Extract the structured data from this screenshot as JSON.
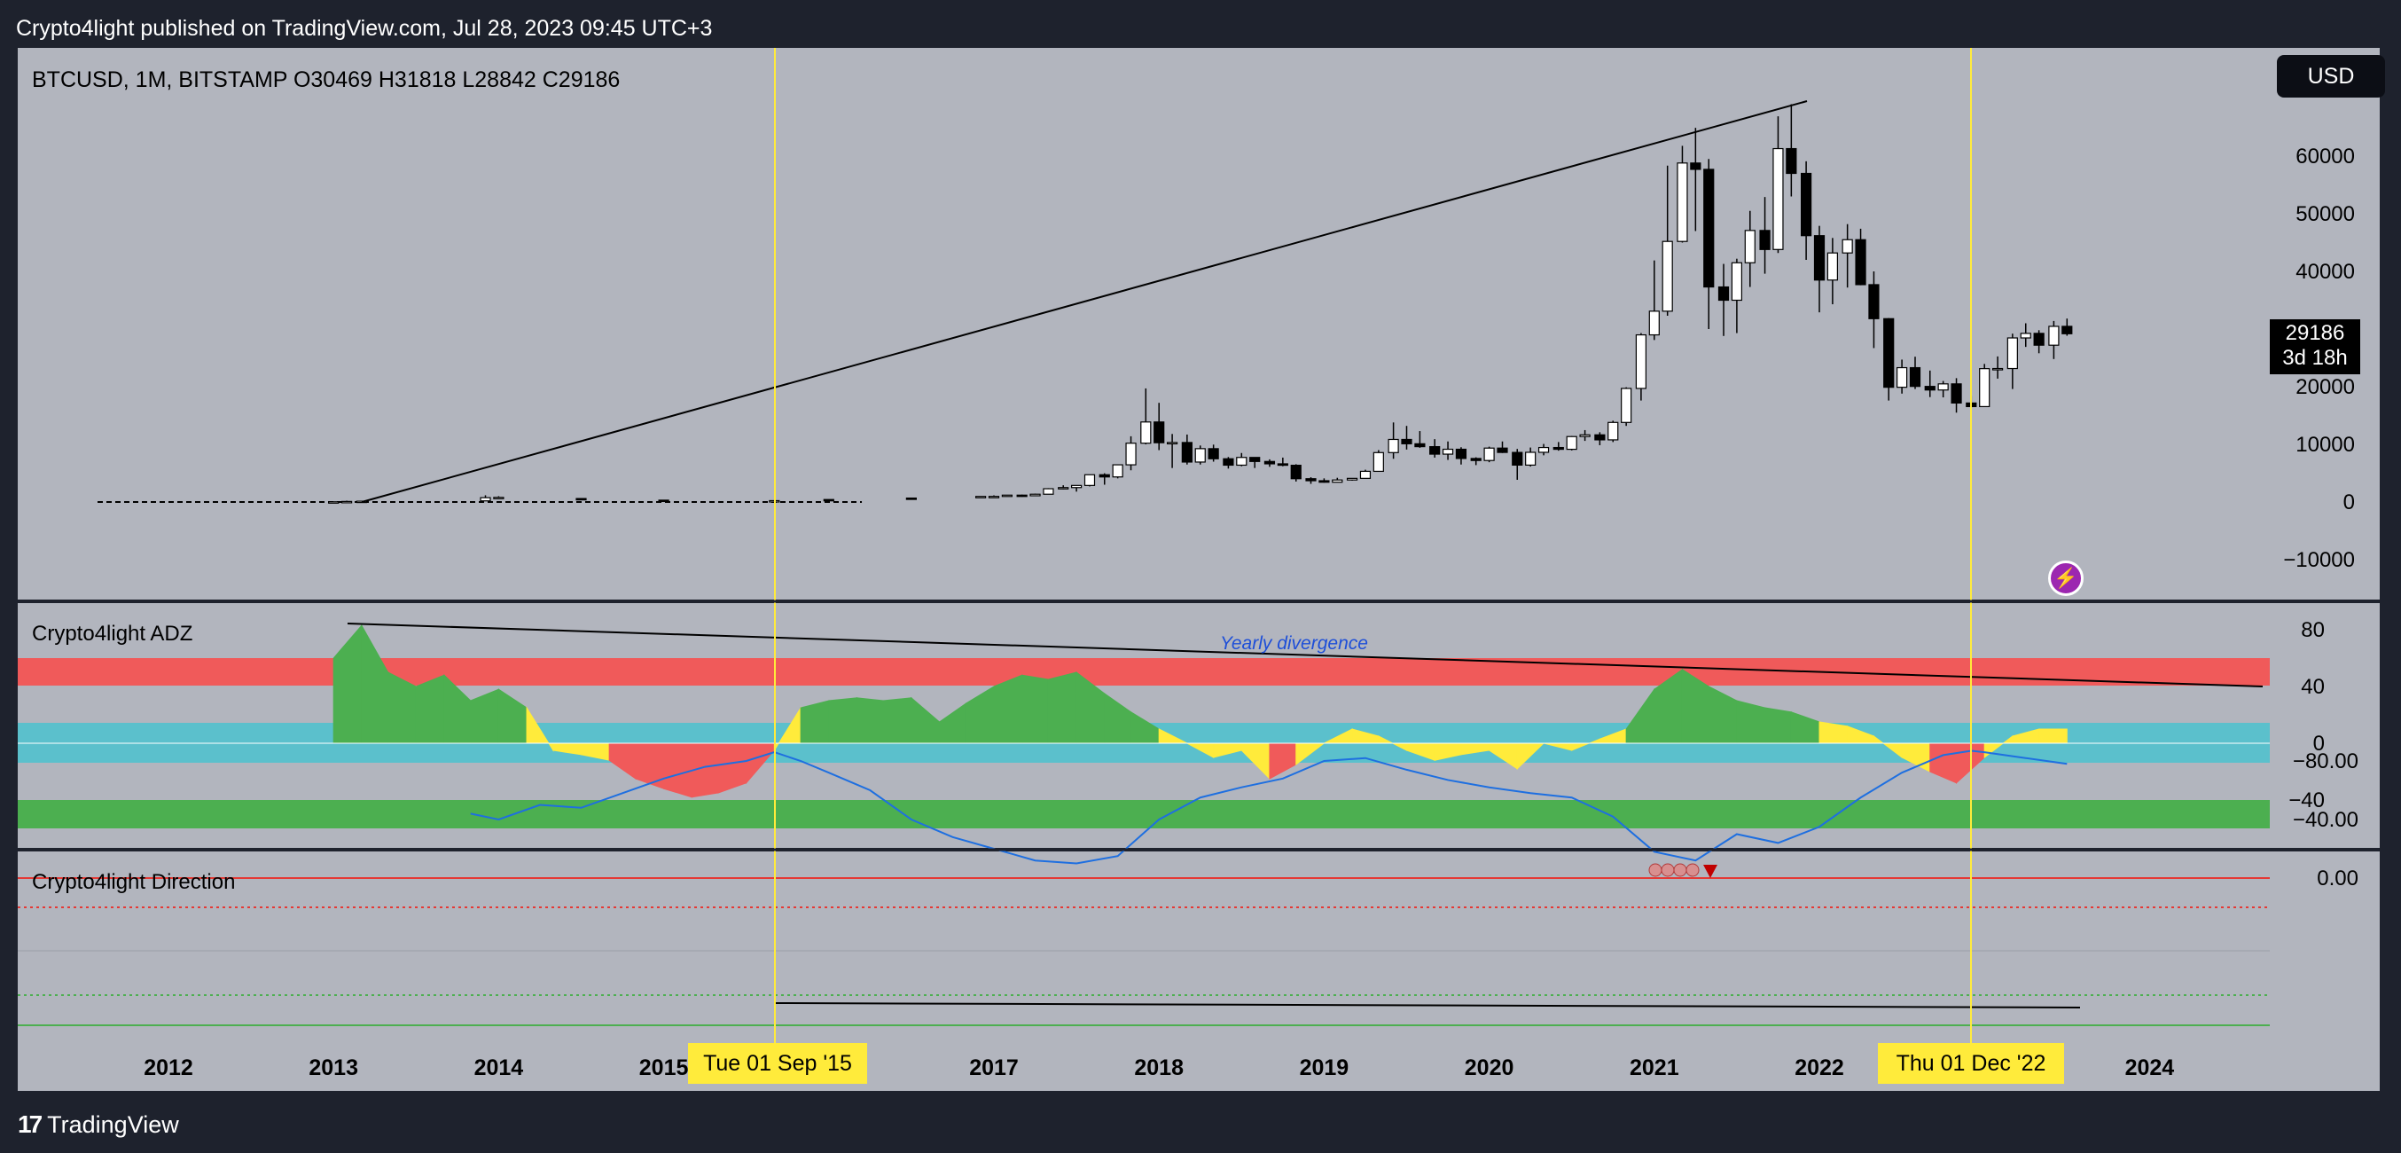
{
  "header": {
    "published": "Crypto4light published on TradingView.com, Jul 28, 2023 09:45 UTC+3"
  },
  "symbol_line": "BTCUSD, 1M, BITSTAMP  O30469  H31818  L28842  C29186",
  "currency_button": "USD",
  "last_price": {
    "value": "29186",
    "countdown": "3d 18h"
  },
  "footer": {
    "brand": "TradingView",
    "logo_mark": "17"
  },
  "colors": {
    "pane_bg": "#b2b5be",
    "yellow": "#ffeb3b",
    "green": "#4caf50",
    "red": "#f05a5a",
    "teal": "#5bc0cc",
    "blue": "#1e6fe0"
  },
  "chart_data": [
    {
      "type": "candlestick",
      "title": "BTCUSD, 1M, BITSTAMP",
      "ylim": [
        -17000,
        70000
      ],
      "yticks": [
        "60000",
        "50000",
        "40000",
        "30000",
        "20000",
        "10000",
        "0",
        "−10000"
      ],
      "candles": [
        [
          2013.0,
          13,
          33,
          13,
          33
        ],
        [
          2013.08,
          33,
          230,
          33,
          94
        ],
        [
          2013.17,
          94,
          150,
          70,
          140
        ],
        [
          2013.92,
          200,
          1163,
          200,
          750
        ],
        [
          2014.0,
          750,
          1000,
          700,
          800
        ],
        [
          2014.5,
          600,
          650,
          550,
          580
        ],
        [
          2015.0,
          320,
          330,
          180,
          220
        ],
        [
          2015.67,
          230,
          240,
          220,
          235
        ],
        [
          2016.0,
          430,
          450,
          350,
          370
        ],
        [
          2016.5,
          680,
          700,
          620,
          650
        ],
        [
          2016.92,
          750,
          980,
          740,
          965
        ],
        [
          2017.0,
          965,
          1150,
          900,
          970
        ],
        [
          2017.08,
          970,
          1200,
          920,
          1190
        ],
        [
          2017.17,
          1190,
          1280,
          900,
          1080
        ],
        [
          2017.25,
          1080,
          1450,
          1060,
          1350
        ],
        [
          2017.33,
          1350,
          2400,
          1340,
          2300
        ],
        [
          2017.42,
          2300,
          2900,
          2200,
          2500
        ],
        [
          2017.5,
          2500,
          2900,
          1800,
          2870
        ],
        [
          2017.58,
          2870,
          4700,
          2700,
          4730
        ],
        [
          2017.67,
          4730,
          4980,
          3000,
          4350
        ],
        [
          2017.75,
          4350,
          6500,
          4100,
          6450
        ],
        [
          2017.83,
          6450,
          11400,
          5500,
          10200
        ],
        [
          2017.92,
          10200,
          19700,
          10000,
          13880
        ],
        [
          2018.0,
          13880,
          17200,
          9000,
          10280
        ],
        [
          2018.08,
          10280,
          11800,
          5900,
          10320
        ],
        [
          2018.17,
          10320,
          11700,
          6500,
          6930
        ],
        [
          2018.25,
          6930,
          9800,
          6500,
          9250
        ],
        [
          2018.33,
          9250,
          9950,
          7000,
          7500
        ],
        [
          2018.42,
          7500,
          7800,
          5800,
          6390
        ],
        [
          2018.5,
          6390,
          8500,
          6200,
          7730
        ],
        [
          2018.58,
          7730,
          7750,
          5900,
          7030
        ],
        [
          2018.67,
          7030,
          7400,
          6100,
          6620
        ],
        [
          2018.75,
          6620,
          7700,
          6200,
          6370
        ],
        [
          2018.83,
          6370,
          6550,
          3550,
          4040
        ],
        [
          2018.92,
          4040,
          4300,
          3150,
          3690
        ],
        [
          2019.0,
          3690,
          4100,
          3350,
          3430
        ],
        [
          2019.08,
          3430,
          4200,
          3400,
          3820
        ],
        [
          2019.17,
          3820,
          4100,
          3700,
          4100
        ],
        [
          2019.25,
          4100,
          5600,
          4100,
          5320
        ],
        [
          2019.33,
          5320,
          9000,
          5300,
          8570
        ],
        [
          2019.42,
          8570,
          13800,
          7500,
          10850
        ],
        [
          2019.5,
          10850,
          13200,
          9100,
          10100
        ],
        [
          2019.58,
          10100,
          12300,
          9400,
          9600
        ],
        [
          2019.67,
          9600,
          10900,
          7700,
          8300
        ],
        [
          2019.75,
          8300,
          10500,
          7300,
          9150
        ],
        [
          2019.83,
          9150,
          9500,
          6500,
          7550
        ],
        [
          2019.92,
          7550,
          7750,
          6400,
          7200
        ],
        [
          2020.0,
          7200,
          9600,
          6900,
          9350
        ],
        [
          2020.08,
          9350,
          10500,
          8500,
          8600
        ],
        [
          2020.17,
          8600,
          9200,
          3850,
          6400
        ],
        [
          2020.25,
          6400,
          9450,
          6150,
          8620
        ],
        [
          2020.33,
          8620,
          10070,
          8100,
          9450
        ],
        [
          2020.42,
          9450,
          10400,
          8900,
          9140
        ],
        [
          2020.5,
          9140,
          11450,
          8950,
          11350
        ],
        [
          2020.58,
          11350,
          12470,
          10600,
          11650
        ],
        [
          2020.67,
          11650,
          12100,
          9850,
          10780
        ],
        [
          2020.75,
          10780,
          14100,
          10400,
          13800
        ],
        [
          2020.83,
          13800,
          19900,
          13200,
          19700
        ],
        [
          2020.92,
          19700,
          29300,
          17600,
          28990
        ],
        [
          2021.0,
          28990,
          41900,
          28100,
          33100
        ],
        [
          2021.08,
          33100,
          58350,
          32300,
          45200
        ],
        [
          2021.17,
          45200,
          61780,
          45000,
          58800
        ],
        [
          2021.25,
          58800,
          64900,
          47000,
          57700
        ],
        [
          2021.33,
          57700,
          59500,
          30000,
          37300
        ],
        [
          2021.42,
          37300,
          41300,
          28800,
          35000
        ],
        [
          2021.5,
          35000,
          42200,
          29300,
          41500
        ],
        [
          2021.58,
          41500,
          50500,
          37300,
          47100
        ],
        [
          2021.67,
          47100,
          52900,
          39600,
          43800
        ],
        [
          2021.75,
          43800,
          66900,
          43200,
          61300
        ],
        [
          2021.83,
          61300,
          69000,
          53000,
          57000
        ],
        [
          2021.92,
          57000,
          59100,
          42000,
          46200
        ],
        [
          2022.0,
          46200,
          47900,
          32900,
          38500
        ],
        [
          2022.08,
          38500,
          45800,
          34300,
          43200
        ],
        [
          2022.17,
          43200,
          48200,
          37200,
          45500
        ],
        [
          2022.25,
          45500,
          47400,
          37600,
          37700
        ],
        [
          2022.33,
          37700,
          40000,
          26700,
          31800
        ],
        [
          2022.42,
          31800,
          31900,
          17600,
          19900
        ],
        [
          2022.5,
          19900,
          24700,
          18800,
          23300
        ],
        [
          2022.58,
          23300,
          25200,
          19600,
          20050
        ],
        [
          2022.67,
          20050,
          22800,
          18200,
          19430
        ],
        [
          2022.75,
          19430,
          20990,
          18150,
          20490
        ],
        [
          2022.83,
          20490,
          21480,
          15500,
          17170
        ],
        [
          2022.92,
          17170,
          18400,
          16300,
          16550
        ],
        [
          2023.0,
          16550,
          23950,
          16500,
          23130
        ],
        [
          2023.08,
          23130,
          25250,
          21400,
          23150
        ],
        [
          2023.17,
          23150,
          29200,
          19600,
          28460
        ],
        [
          2023.25,
          28460,
          31000,
          26900,
          29250
        ],
        [
          2023.33,
          29250,
          29800,
          25800,
          27200
        ],
        [
          2023.42,
          27200,
          31400,
          24800,
          30470
        ],
        [
          2023.5,
          30469,
          31818,
          28842,
          29186
        ]
      ]
    },
    {
      "type": "area",
      "title": "Crypto4light ADZ",
      "ylim": [
        -62,
        85
      ],
      "yticks": [
        "80",
        "40",
        "0",
        "−40"
      ],
      "annotation": "Yearly divergence",
      "x": [
        2013.0,
        2013.17,
        2013.33,
        2013.5,
        2013.67,
        2013.83,
        2014.0,
        2014.17,
        2014.33,
        2014.5,
        2014.67,
        2014.83,
        2015.0,
        2015.17,
        2015.33,
        2015.5,
        2015.67,
        2015.83,
        2016.0,
        2016.17,
        2016.33,
        2016.5,
        2016.67,
        2016.83,
        2017.0,
        2017.17,
        2017.33,
        2017.5,
        2017.67,
        2017.83,
        2018.0,
        2018.17,
        2018.33,
        2018.5,
        2018.67,
        2018.83,
        2019.0,
        2019.17,
        2019.33,
        2019.5,
        2019.67,
        2019.83,
        2020.0,
        2020.17,
        2020.33,
        2020.5,
        2020.67,
        2020.83,
        2021.0,
        2021.17,
        2021.33,
        2021.5,
        2021.67,
        2021.83,
        2022.0,
        2022.17,
        2022.33,
        2022.5,
        2022.67,
        2022.83,
        2023.0,
        2023.17,
        2023.33,
        2023.5
      ],
      "values": [
        60,
        83,
        50,
        40,
        48,
        30,
        38,
        25,
        -5,
        -8,
        -12,
        -25,
        -32,
        -38,
        -35,
        -28,
        -5,
        25,
        30,
        32,
        30,
        32,
        15,
        28,
        40,
        48,
        45,
        50,
        35,
        22,
        10,
        0,
        -10,
        -5,
        -25,
        -15,
        0,
        10,
        5,
        -5,
        -12,
        -8,
        -5,
        -18,
        0,
        -5,
        3,
        10,
        38,
        52,
        40,
        30,
        25,
        22,
        15,
        12,
        5,
        -10,
        -20,
        -28,
        -10,
        5,
        10,
        10
      ]
    },
    {
      "type": "line",
      "title": "Crypto4light Direction",
      "ylim": [
        -100,
        8
      ],
      "yticks": [
        "0.00",
        "−40.00",
        "−80.00"
      ],
      "x": [
        2013.83,
        2014.0,
        2014.25,
        2014.5,
        2014.75,
        2015.0,
        2015.25,
        2015.5,
        2015.67,
        2015.83,
        2016.0,
        2016.25,
        2016.5,
        2016.75,
        2017.0,
        2017.25,
        2017.5,
        2017.75,
        2018.0,
        2018.25,
        2018.5,
        2018.75,
        2019.0,
        2019.25,
        2019.5,
        2019.75,
        2020.0,
        2020.25,
        2020.5,
        2020.75,
        2021.0,
        2021.25,
        2021.5,
        2021.75,
        2022.0,
        2022.25,
        2022.5,
        2022.75,
        2022.92,
        2023.0,
        2023.25,
        2023.5
      ],
      "values": [
        -44,
        -40,
        -50,
        -48,
        -58,
        -68,
        -76,
        -80,
        -86,
        -80,
        -72,
        -60,
        -40,
        -28,
        -20,
        -12,
        -10,
        -15,
        -40,
        -55,
        -62,
        -68,
        -80,
        -82,
        -74,
        -67,
        -62,
        -58,
        -55,
        -42,
        -18,
        -12,
        -30,
        -24,
        -35,
        -55,
        -72,
        -84,
        -87,
        -86,
        -82,
        -78
      ]
    }
  ],
  "x_axis": {
    "ticks": [
      "2012",
      "2013",
      "2014",
      "2015",
      "2017",
      "2018",
      "2019",
      "2020",
      "2021",
      "2022",
      "2024"
    ]
  },
  "date_markers": [
    {
      "label": "Tue 01 Sep '15",
      "x": 2015.67
    },
    {
      "label": "Thu 01 Dec '22",
      "x": 2022.92
    }
  ]
}
